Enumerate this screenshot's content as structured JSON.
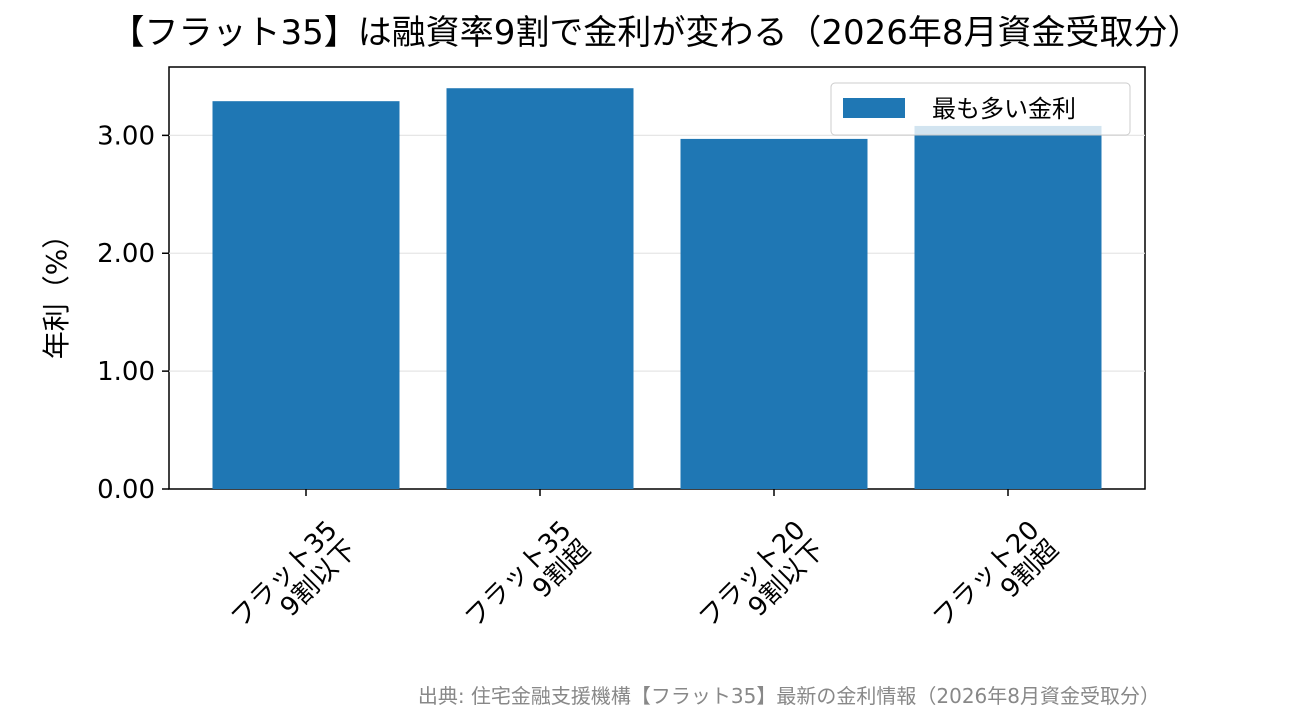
{
  "chart_data": {
    "type": "bar",
    "title": "【フラット35】は融資率9割で金利が変わる（2026年8月資金受取分）",
    "categories": [
      [
        "フラット35",
        "9割以下"
      ],
      [
        "フラット35",
        "9割超"
      ],
      [
        "フラット20",
        "9割以下"
      ],
      [
        "フラット20",
        "9割超"
      ]
    ],
    "series": [
      {
        "name": "最も多い金利",
        "values": [
          3.29,
          3.4,
          2.97,
          3.08
        ],
        "color": "#1f77b4"
      }
    ],
    "ylabel": "年利（%）",
    "xlabel": "",
    "ylim": [
      0,
      3.58
    ],
    "yticks": [
      "0.00",
      "1.00",
      "2.00",
      "3.00"
    ],
    "grid": "y",
    "legend": "top-right"
  },
  "source": "出典: 住宅金融支援機構【フラット35】最新の金利情報（2026年8月資金受取分）"
}
